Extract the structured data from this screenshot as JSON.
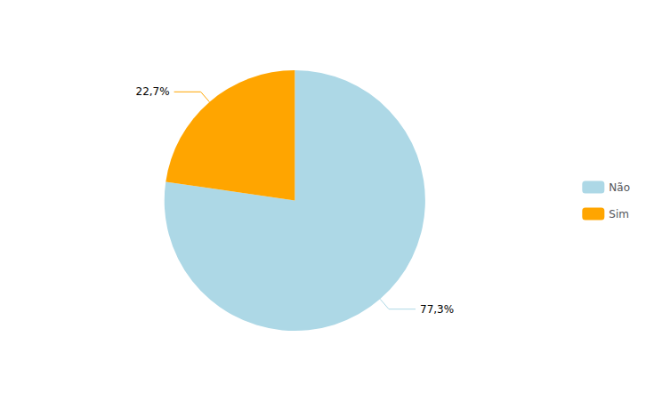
{
  "chart_data": {
    "type": "pie",
    "categories": [
      "Não",
      "Sim"
    ],
    "values": [
      77.3,
      22.7
    ],
    "value_labels": [
      "77,3%",
      "22,7%"
    ],
    "colors": [
      "#ADD8E6",
      "#FFA500"
    ],
    "data_labels": true,
    "legend": "right"
  }
}
